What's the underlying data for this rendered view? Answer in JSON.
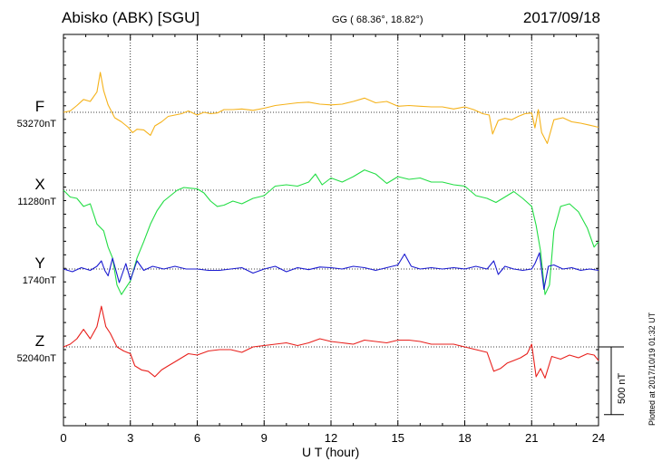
{
  "header": {
    "title": "Abisko (ABK)  [SGU]",
    "coords": "GG ( 68.36°,  18.82°)",
    "date": "2017/09/18",
    "plotted": "Plotted at 2017/10/19 01:32 UT"
  },
  "chart_data": {
    "type": "line",
    "xlabel": "U T (hour)",
    "xlim": [
      0,
      24
    ],
    "xticks": [
      "0",
      "3",
      "6",
      "9",
      "12",
      "15",
      "18",
      "21",
      "24"
    ],
    "y_units": "nT",
    "scale_bar": "500 nT",
    "scale_bar_nT": 500,
    "nT_per_row_spacing": 575,
    "grid": true,
    "series": [
      {
        "name": "F",
        "baseline": "53270nT",
        "color": "#f5b21a",
        "x": [
          0,
          0.3,
          0.6,
          0.9,
          1.2,
          1.5,
          1.65,
          1.8,
          2.0,
          2.3,
          2.6,
          2.9,
          3.1,
          3.3,
          3.6,
          3.9,
          4.1,
          4.4,
          4.7,
          5.0,
          5.3,
          5.6,
          6.0,
          6.3,
          6.6,
          6.9,
          7.2,
          7.6,
          8.0,
          8.5,
          9.0,
          9.5,
          10.0,
          10.5,
          11.0,
          11.5,
          12.0,
          12.5,
          13.0,
          13.5,
          14.0,
          14.5,
          15.0,
          15.5,
          16.0,
          16.5,
          17.0,
          17.5,
          18.0,
          18.4,
          18.8,
          19.1,
          19.25,
          19.5,
          19.8,
          20.1,
          20.4,
          20.7,
          21.0,
          21.15,
          21.3,
          21.45,
          21.7,
          22.0,
          22.4,
          22.8,
          23.2,
          23.6,
          24.0
        ],
        "y": [
          0,
          10,
          50,
          95,
          80,
          150,
          295,
          160,
          55,
          -40,
          -70,
          -110,
          -150,
          -125,
          -130,
          -170,
          -100,
          -70,
          -30,
          -20,
          -10,
          10,
          -20,
          0,
          -10,
          -5,
          20,
          20,
          25,
          15,
          30,
          50,
          60,
          70,
          75,
          60,
          55,
          60,
          80,
          105,
          70,
          80,
          45,
          50,
          45,
          40,
          40,
          25,
          40,
          20,
          -10,
          -20,
          -160,
          -60,
          -45,
          -55,
          -30,
          -10,
          -5,
          -115,
          20,
          -150,
          -230,
          -55,
          -40,
          -70,
          -80,
          -95,
          -110
        ]
      },
      {
        "name": "X",
        "baseline": "11280nT",
        "color": "#22dd44",
        "x": [
          0,
          0.3,
          0.6,
          0.9,
          1.2,
          1.5,
          1.8,
          2.0,
          2.2,
          2.4,
          2.6,
          2.8,
          3.0,
          3.3,
          3.6,
          3.9,
          4.2,
          4.5,
          4.8,
          5.1,
          5.4,
          5.7,
          6.0,
          6.3,
          6.6,
          6.9,
          7.2,
          7.6,
          8.0,
          8.5,
          9.0,
          9.5,
          10.0,
          10.5,
          11.0,
          11.3,
          11.6,
          12.0,
          12.5,
          13.0,
          13.5,
          14.0,
          14.5,
          15.0,
          15.5,
          16.0,
          16.5,
          17.0,
          17.5,
          18.0,
          18.5,
          19.0,
          19.4,
          19.8,
          20.2,
          20.6,
          21.0,
          21.2,
          21.4,
          21.6,
          21.8,
          22.0,
          22.3,
          22.7,
          23.1,
          23.5,
          23.8,
          24.0
        ],
        "y": [
          0,
          -50,
          -60,
          -120,
          -100,
          -250,
          -300,
          -420,
          -500,
          -700,
          -770,
          -720,
          -670,
          -500,
          -380,
          -250,
          -150,
          -80,
          -40,
          0,
          20,
          15,
          10,
          -20,
          -80,
          -120,
          -110,
          -80,
          -100,
          -60,
          -40,
          30,
          40,
          30,
          60,
          120,
          40,
          90,
          60,
          100,
          150,
          120,
          50,
          100,
          80,
          90,
          60,
          60,
          40,
          30,
          -40,
          -60,
          -90,
          -50,
          -10,
          -60,
          -120,
          -260,
          -450,
          -770,
          -700,
          -300,
          -120,
          -100,
          -160,
          -280,
          -420,
          -380
        ]
      },
      {
        "name": "Y",
        "baseline": "1740nT",
        "color": "#1a1ad0",
        "x": [
          0,
          0.4,
          0.8,
          1.2,
          1.5,
          1.7,
          1.85,
          2.0,
          2.2,
          2.5,
          2.8,
          3.0,
          3.3,
          3.6,
          4.0,
          4.5,
          5.0,
          5.5,
          6.0,
          6.5,
          7.0,
          7.5,
          8.0,
          8.5,
          9.0,
          9.5,
          10.0,
          10.5,
          11.0,
          11.5,
          12.0,
          12.5,
          13.0,
          13.5,
          14.0,
          14.5,
          15.0,
          15.3,
          15.6,
          16.0,
          16.5,
          17.0,
          17.5,
          18.0,
          18.5,
          19.0,
          19.3,
          19.5,
          19.8,
          20.2,
          20.6,
          21.0,
          21.15,
          21.35,
          21.55,
          21.75,
          22.0,
          22.4,
          22.8,
          23.2,
          23.6,
          24.0
        ],
        "y": [
          0,
          -20,
          10,
          -10,
          20,
          60,
          -10,
          -50,
          80,
          -100,
          40,
          -80,
          60,
          -10,
          20,
          0,
          20,
          0,
          0,
          -10,
          -10,
          0,
          10,
          -30,
          0,
          20,
          -20,
          10,
          -5,
          15,
          10,
          0,
          20,
          10,
          -10,
          10,
          30,
          110,
          20,
          0,
          10,
          0,
          10,
          0,
          20,
          0,
          60,
          -40,
          20,
          0,
          -10,
          0,
          40,
          120,
          -150,
          20,
          30,
          0,
          10,
          -10,
          0,
          -10
        ]
      },
      {
        "name": "Z",
        "baseline": "52040nT",
        "color": "#e8201c",
        "x": [
          0,
          0.3,
          0.6,
          0.9,
          1.2,
          1.5,
          1.7,
          1.9,
          2.1,
          2.4,
          2.7,
          3.0,
          3.2,
          3.5,
          3.8,
          4.1,
          4.4,
          4.7,
          5.0,
          5.3,
          5.6,
          6.0,
          6.5,
          7.0,
          7.5,
          8.0,
          8.5,
          9.0,
          9.5,
          10.0,
          10.5,
          11.0,
          11.5,
          12.0,
          12.5,
          13.0,
          13.5,
          14.0,
          14.5,
          15.0,
          15.5,
          16.0,
          16.5,
          17.0,
          17.5,
          18.0,
          18.5,
          19.0,
          19.3,
          19.6,
          19.9,
          20.2,
          20.5,
          20.8,
          21.0,
          21.2,
          21.4,
          21.6,
          21.9,
          22.3,
          22.7,
          23.1,
          23.5,
          23.8,
          24.0
        ],
        "y": [
          0,
          20,
          60,
          130,
          60,
          150,
          300,
          150,
          100,
          0,
          -30,
          -50,
          -140,
          -170,
          -180,
          -220,
          -170,
          -140,
          -110,
          -80,
          -50,
          -60,
          -30,
          -20,
          -20,
          -40,
          0,
          10,
          20,
          30,
          10,
          30,
          60,
          40,
          30,
          20,
          50,
          40,
          30,
          50,
          50,
          40,
          20,
          20,
          20,
          0,
          -20,
          -40,
          -180,
          -160,
          -120,
          -100,
          -80,
          -50,
          20,
          -220,
          -160,
          -230,
          -70,
          -90,
          -60,
          -80,
          -50,
          -60,
          -100
        ]
      }
    ]
  }
}
